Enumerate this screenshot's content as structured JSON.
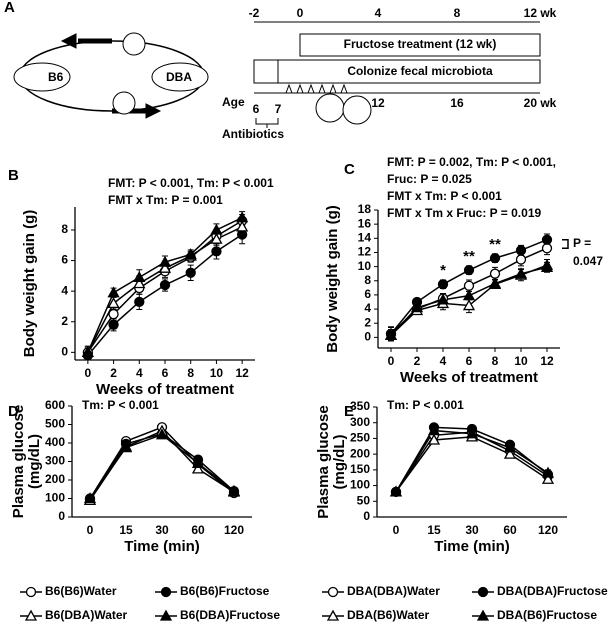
{
  "schematic": {
    "panel": "A",
    "strains": [
      "B6",
      "DBA"
    ],
    "top_ticks": [
      "-2",
      "0",
      "4",
      "8",
      "12 wk"
    ],
    "bars": [
      "Fructose treatment  (12 wk)",
      "Colonize fecal microbiota"
    ],
    "age_label": "Age",
    "bottom_ticks": [
      "6",
      "7",
      "12",
      "16",
      "20 wk"
    ],
    "antibiotics": "Antibiotics"
  },
  "chart_data": [
    {
      "type": "line",
      "panel": "B",
      "stats": [
        "FMT: P < 0.001, Tm: P < 0.001",
        "FMT x Tm: P = 0.001"
      ],
      "xlabel": "Weeks of treatment",
      "ylabel": [
        "Body weight gain (g)"
      ],
      "x": [
        0,
        2,
        4,
        6,
        8,
        10,
        12
      ],
      "xlim": [
        -1,
        13
      ],
      "xticks": [
        0,
        2,
        4,
        6,
        8,
        10,
        12
      ],
      "ylim": [
        -0.5,
        9.5
      ],
      "yticks": [
        0,
        2,
        4,
        6,
        8
      ],
      "series": [
        {
          "name": "B6(B6)Water",
          "color": "#000000",
          "marker": "circle",
          "filled": false,
          "values": [
            0,
            2.5,
            4.2,
            5.3,
            6.2,
            7.6,
            8.6
          ],
          "errors": [
            0.4,
            0.4,
            0.4,
            0.4,
            0.3,
            0.4,
            0.4
          ]
        },
        {
          "name": "B6(B6)Fructose",
          "color": "#000000",
          "marker": "circle",
          "filled": true,
          "values": [
            -0.2,
            1.8,
            3.3,
            4.4,
            5.2,
            6.6,
            7.7
          ],
          "errors": [
            0.3,
            0.4,
            0.5,
            0.4,
            0.5,
            0.5,
            0.6
          ]
        },
        {
          "name": "B6(DBA)Water",
          "color": "#000000",
          "marker": "triangle",
          "filled": false,
          "values": [
            0,
            3.2,
            4.5,
            5.5,
            6.3,
            7.4,
            8.2
          ],
          "errors": [
            0.3,
            0.4,
            0.5,
            0.4,
            0.3,
            0.4,
            0.4
          ]
        },
        {
          "name": "B6(DBA)Fructose",
          "color": "#000000",
          "marker": "triangle",
          "filled": true,
          "values": [
            0,
            3.9,
            4.9,
            5.9,
            6.4,
            8.0,
            8.8
          ],
          "errors": [
            0.4,
            0.3,
            0.5,
            0.4,
            0.3,
            0.4,
            0.4
          ]
        }
      ]
    },
    {
      "type": "line",
      "panel": "C",
      "stats": [
        "FMT: P = 0.002, Tm: P < 0.001,",
        "Fruc: P = 0.025",
        "FMT x Tm: P < 0.001",
        "FMT x Tm x Fruc: P = 0.019"
      ],
      "xlabel": "Weeks of treatment",
      "ylabel": [
        "Body weight gain (g)"
      ],
      "x": [
        0,
        2,
        4,
        6,
        8,
        10,
        12
      ],
      "xlim": [
        -1,
        13
      ],
      "xticks": [
        0,
        2,
        4,
        6,
        8,
        10,
        12
      ],
      "ylim": [
        -1.5,
        18
      ],
      "yticks": [
        0,
        2,
        4,
        6,
        8,
        10,
        12,
        14,
        16,
        18
      ],
      "annotations": [
        {
          "text": "*",
          "x": 4
        },
        {
          "text": "**",
          "x": 6
        },
        {
          "text": "**",
          "x": 8
        }
      ],
      "bracket_label": [
        "P =",
        "0.047"
      ],
      "series": [
        {
          "name": "DBA(DBA)Water",
          "color": "#000000",
          "marker": "circle",
          "filled": false,
          "values": [
            0.5,
            4.0,
            5.5,
            7.3,
            9.0,
            11.0,
            12.6
          ],
          "errors": [
            1.0,
            0.6,
            0.7,
            0.8,
            0.9,
            0.9,
            0.9
          ]
        },
        {
          "name": "DBA(DBA)Fructose",
          "color": "#000000",
          "marker": "circle",
          "filled": true,
          "values": [
            0.5,
            5.0,
            7.5,
            9.5,
            11.2,
            12.3,
            13.8
          ],
          "errors": [
            0.9,
            0.5,
            0.6,
            0.6,
            0.6,
            0.7,
            0.8
          ]
        },
        {
          "name": "DBA(B6)Water",
          "color": "#000000",
          "marker": "triangle",
          "filled": false,
          "values": [
            0.3,
            3.8,
            4.8,
            4.5,
            7.5,
            8.8,
            10.2
          ],
          "errors": [
            0.8,
            0.5,
            0.9,
            1.0,
            0.6,
            0.8,
            0.8
          ]
        },
        {
          "name": "DBA(B6)Fructose",
          "color": "#000000",
          "marker": "triangle",
          "filled": true,
          "values": [
            0.3,
            4.2,
            5.3,
            5.9,
            7.6,
            9.0,
            9.9
          ],
          "errors": [
            0.8,
            0.5,
            0.6,
            0.6,
            0.6,
            0.7,
            0.7
          ]
        }
      ]
    },
    {
      "type": "line",
      "panel": "D",
      "stats": [
        "Tm: P < 0.001"
      ],
      "xlabel": "Time (min)",
      "ylabel": [
        "Plasma glucose",
        "(mg/dL)"
      ],
      "categories": [
        "0",
        "15",
        "30",
        "60",
        "120"
      ],
      "ylim": [
        0,
        600
      ],
      "yticks": [
        0,
        100,
        200,
        300,
        400,
        500,
        600
      ],
      "series": [
        {
          "color": "#000000",
          "marker": "circle",
          "filled": false,
          "values": [
            100,
            410,
            485,
            285,
            130
          ],
          "errors": [
            12,
            15,
            18,
            15,
            10
          ]
        },
        {
          "color": "#000000",
          "marker": "circle",
          "filled": true,
          "values": [
            95,
            395,
            450,
            310,
            140
          ],
          "errors": [
            10,
            15,
            15,
            15,
            10
          ]
        },
        {
          "color": "#000000",
          "marker": "triangle",
          "filled": false,
          "values": [
            90,
            380,
            465,
            260,
            135
          ],
          "errors": [
            10,
            15,
            15,
            20,
            10
          ]
        },
        {
          "color": "#000000",
          "marker": "triangle",
          "filled": true,
          "values": [
            100,
            375,
            445,
            290,
            140
          ],
          "errors": [
            10,
            15,
            15,
            15,
            10
          ]
        }
      ]
    },
    {
      "type": "line",
      "panel": "E",
      "stats": [
        "Tm: P < 0.001"
      ],
      "xlabel": "Time (min)",
      "ylabel": [
        "Plasma glucose",
        "(mg/dL)"
      ],
      "categories": [
        "0",
        "15",
        "30",
        "60",
        "120"
      ],
      "ylim": [
        0,
        350
      ],
      "yticks": [
        0,
        50,
        100,
        150,
        200,
        250,
        300,
        350
      ],
      "series": [
        {
          "color": "#000000",
          "marker": "circle",
          "filled": false,
          "values": [
            80,
            260,
            270,
            210,
            130
          ],
          "errors": [
            5,
            12,
            12,
            12,
            10
          ]
        },
        {
          "color": "#000000",
          "marker": "circle",
          "filled": true,
          "values": [
            80,
            285,
            280,
            230,
            135
          ],
          "errors": [
            5,
            10,
            12,
            12,
            10
          ]
        },
        {
          "color": "#000000",
          "marker": "triangle",
          "filled": false,
          "values": [
            80,
            245,
            255,
            200,
            120
          ],
          "errors": [
            5,
            12,
            10,
            10,
            10
          ]
        },
        {
          "color": "#000000",
          "marker": "triangle",
          "filled": true,
          "values": [
            80,
            275,
            265,
            220,
            140
          ],
          "errors": [
            5,
            10,
            10,
            12,
            10
          ]
        }
      ]
    }
  ]
}
